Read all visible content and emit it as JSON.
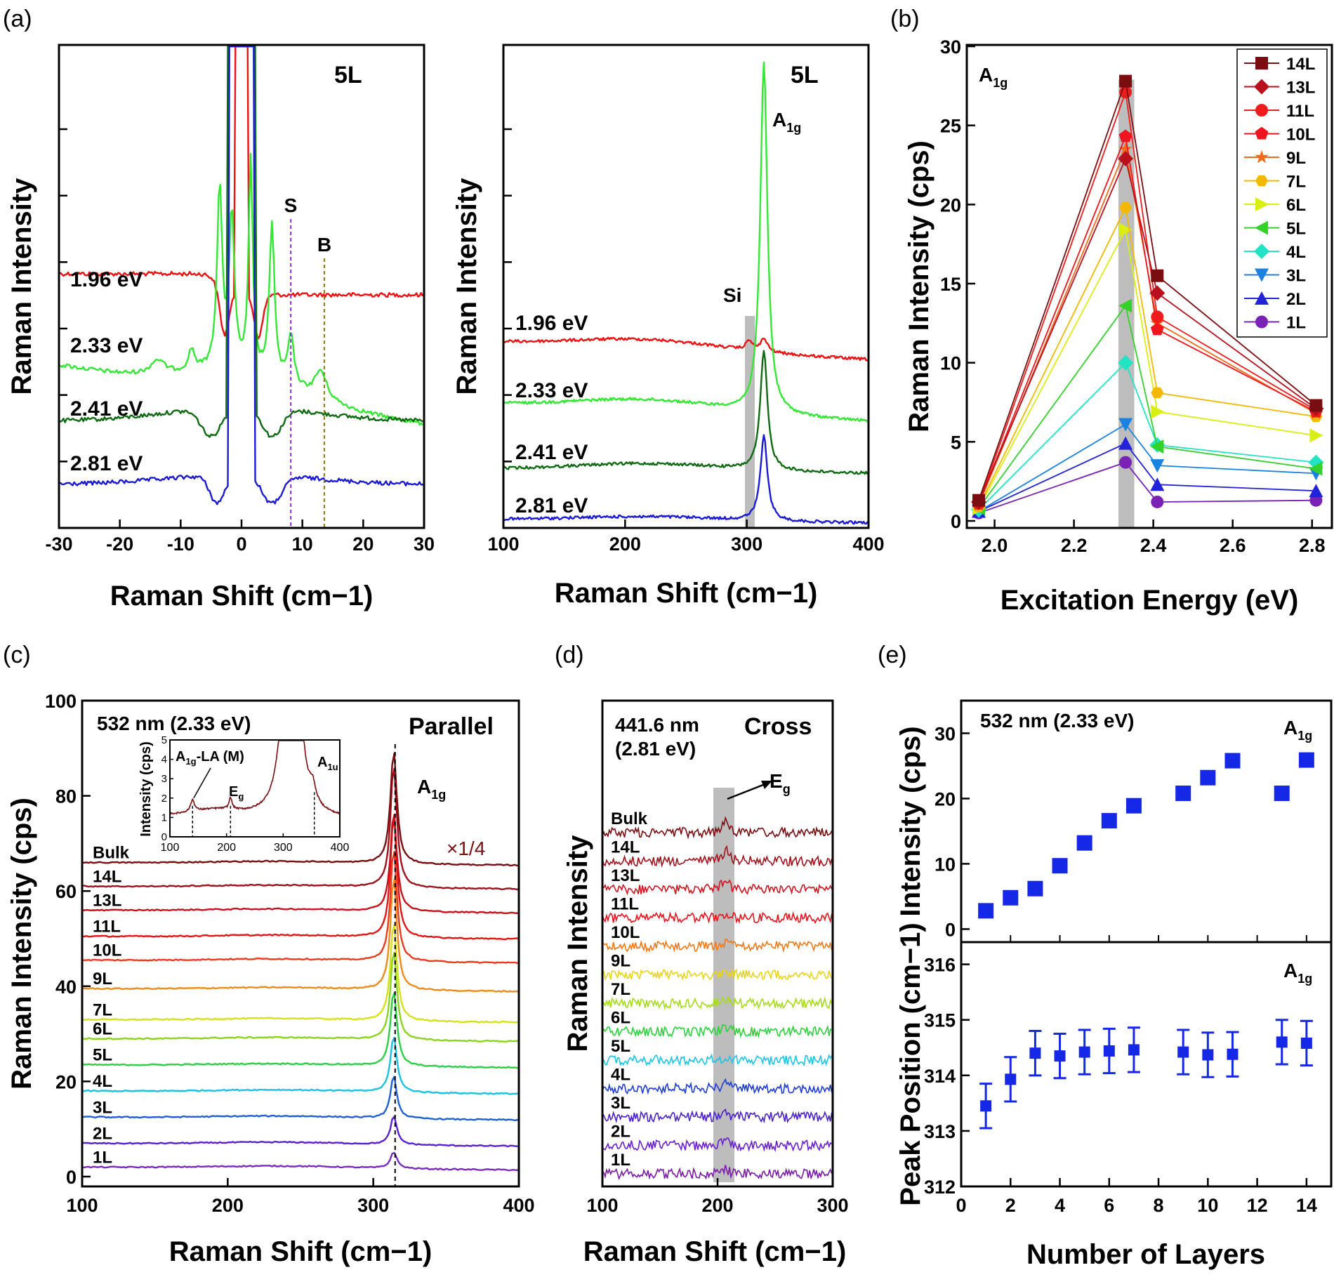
{
  "colors": {
    "red": "#ee1111",
    "green": "#33e833",
    "dark_green": "#0e6b12",
    "blue": "#1a1ad6",
    "violet": "#8a2be2",
    "olive": "#8a7a14",
    "maroon": "#7a0d10",
    "shade": "#bdbdbd"
  },
  "chart_data": [
    {
      "id": "a-left",
      "panel_label": "(a)",
      "type": "line",
      "title": "5L",
      "xlabel": "Raman Shift (cm−1)",
      "ylabel": "Raman Intensity",
      "xlim": [
        -30,
        30
      ],
      "xticks": [
        "-30",
        "-20",
        "-10",
        "0",
        "10",
        "20",
        "30"
      ],
      "annotations": [
        {
          "text": "S",
          "x": 8.1,
          "color": "violet"
        },
        {
          "text": "B",
          "x": 13.6,
          "color": "olive"
        }
      ],
      "series": [
        {
          "name": "1.96 eV",
          "color": "red"
        },
        {
          "name": "2.33 eV",
          "color": "green"
        },
        {
          "name": "2.41 eV",
          "color": "dark_green"
        },
        {
          "name": "2.81 eV",
          "color": "blue"
        }
      ]
    },
    {
      "id": "a-right",
      "type": "line",
      "title": "5L",
      "xlabel": "Raman Shift (cm−1)",
      "ylabel": "Raman Intensity",
      "xlim": [
        100,
        400
      ],
      "xticks": [
        "100",
        "200",
        "300",
        "400"
      ],
      "peak_label": {
        "main": "A",
        "sub": "1g",
        "x": 314
      },
      "si_label": {
        "text": "Si",
        "x": 302
      },
      "series": [
        {
          "name": "1.96 eV",
          "color": "red"
        },
        {
          "name": "2.33 eV",
          "color": "green"
        },
        {
          "name": "2.41 eV",
          "color": "dark_green"
        },
        {
          "name": "2.81 eV",
          "color": "blue"
        }
      ]
    },
    {
      "id": "b",
      "panel_label": "(b)",
      "type": "line",
      "title_main": "A",
      "title_sub": "1g",
      "xlabel": "Excitation Energy (eV)",
      "ylabel": "Raman Intensity (cps)",
      "xlim": [
        1.93,
        2.85
      ],
      "ylim": [
        0,
        30
      ],
      "xticks": [
        "2.0",
        "2.2",
        "2.4",
        "2.6",
        "2.8"
      ],
      "yticks": [
        "0",
        "5",
        "10",
        "15",
        "20",
        "25",
        "30"
      ],
      "x": [
        1.96,
        2.33,
        2.41,
        2.81
      ],
      "series": [
        {
          "name": "14L",
          "color": "#7a0d10",
          "marker": "square",
          "values": [
            1.3,
            27.8,
            15.5,
            7.3
          ]
        },
        {
          "name": "13L",
          "color": "#b8111d",
          "marker": "diamond",
          "values": [
            1.2,
            22.9,
            14.4,
            7.1
          ]
        },
        {
          "name": "11L",
          "color": "#ee1c1c",
          "marker": "sphere",
          "values": [
            1.1,
            27.1,
            12.9,
            7.0
          ]
        },
        {
          "name": "10L",
          "color": "#f0141e",
          "marker": "pentagon",
          "values": [
            1.1,
            24.3,
            12.1,
            6.9
          ]
        },
        {
          "name": "9L",
          "color": "#f26a1b",
          "marker": "star",
          "values": [
            1.0,
            23.5,
            12.5,
            6.8
          ]
        },
        {
          "name": "7L",
          "color": "#f5b800",
          "marker": "hexagon",
          "values": [
            0.9,
            19.8,
            8.1,
            6.6
          ]
        },
        {
          "name": "6L",
          "color": "#d9ee12",
          "marker": "triangle-right",
          "values": [
            0.8,
            18.4,
            6.9,
            5.4
          ]
        },
        {
          "name": "5L",
          "color": "#33d12a",
          "marker": "triangle-left",
          "values": [
            0.8,
            13.6,
            4.7,
            3.3
          ]
        },
        {
          "name": "4L",
          "color": "#22e3c3",
          "marker": "diamond",
          "values": [
            0.7,
            10.0,
            4.8,
            3.7
          ]
        },
        {
          "name": "3L",
          "color": "#1a82e0",
          "marker": "triangle-down",
          "values": [
            0.6,
            6.1,
            3.5,
            3.0
          ]
        },
        {
          "name": "2L",
          "color": "#2222d8",
          "marker": "triangle-up",
          "values": [
            0.6,
            4.9,
            2.3,
            1.9
          ]
        },
        {
          "name": "1L",
          "color": "#7a22b5",
          "marker": "circle",
          "values": [
            0.5,
            3.7,
            1.2,
            1.3
          ]
        }
      ]
    },
    {
      "id": "c",
      "panel_label": "(c)",
      "type": "line",
      "xlabel": "Raman Shift (cm−1)",
      "ylabel": "Raman Intensity (cps)",
      "xlim": [
        100,
        400
      ],
      "ylim": [
        0,
        100
      ],
      "xticks": [
        "100",
        "200",
        "300",
        "400"
      ],
      "yticks": [
        "0",
        "20",
        "40",
        "60",
        "80",
        "100"
      ],
      "title": "532 nm (2.33 eV)",
      "mode": "Parallel",
      "peak_label": {
        "main": "A",
        "sub": "1g"
      },
      "scale_note": "×1/4",
      "series": [
        {
          "name": "1L",
          "color": "#7b2bbf",
          "offset": 2,
          "amp": 3.5
        },
        {
          "name": "2L",
          "color": "#5a1fd2",
          "offset": 7,
          "amp": 6
        },
        {
          "name": "3L",
          "color": "#1c5fd9",
          "offset": 12.5,
          "amp": 9
        },
        {
          "name": "4L",
          "color": "#19c2e5",
          "offset": 18,
          "amp": 12
        },
        {
          "name": "5L",
          "color": "#2bcf44",
          "offset": 23.5,
          "amp": 16
        },
        {
          "name": "6L",
          "color": "#8ad41d",
          "offset": 29,
          "amp": 19
        },
        {
          "name": "7L",
          "color": "#d6e11a",
          "offset": 33,
          "amp": 21
        },
        {
          "name": "9L",
          "color": "#f08a18",
          "offset": 39.5,
          "amp": 24
        },
        {
          "name": "10L",
          "color": "#ee3a1a",
          "offset": 45.5,
          "amp": 24
        },
        {
          "name": "11L",
          "color": "#e31515",
          "offset": 50.5,
          "amp": 26
        },
        {
          "name": "13L",
          "color": "#c9111b",
          "offset": 56,
          "amp": 21
        },
        {
          "name": "14L",
          "color": "#a0101a",
          "offset": 61,
          "amp": 26
        },
        {
          "name": "Bulk",
          "color": "#7a0d10",
          "offset": 66,
          "amp": 24
        }
      ],
      "inset": {
        "xlim": [
          100,
          400
        ],
        "ylim": [
          0,
          5
        ],
        "xticks": [
          "100",
          "200",
          "300",
          "400"
        ],
        "yticks": [
          "0",
          "1",
          "2",
          "3",
          "4",
          "5"
        ],
        "ylabel": "Intensity (cps)",
        "labels": [
          {
            "main": "A",
            "sub": "1g",
            "tail": "-LA (M)",
            "x": 140
          },
          {
            "main": "E",
            "sub": "g",
            "x": 207
          },
          {
            "main": "A",
            "sub": "1u",
            "x": 355
          }
        ]
      }
    },
    {
      "id": "d",
      "panel_label": "(d)",
      "type": "line",
      "xlabel": "Raman Shift (cm−1)",
      "ylabel": "Raman Intensity",
      "xlim": [
        100,
        300
      ],
      "xticks": [
        "100",
        "200",
        "300"
      ],
      "title_line1": "441.6 nm",
      "title_line2": "(2.81 eV)",
      "mode": "Cross",
      "peak_label": {
        "main": "E",
        "sub": "g",
        "x": 207
      },
      "series": [
        {
          "name": "1L",
          "color": "#7a1aa8"
        },
        {
          "name": "2L",
          "color": "#6a1fd2"
        },
        {
          "name": "3L",
          "color": "#4a22c8"
        },
        {
          "name": "4L",
          "color": "#1e3dd8"
        },
        {
          "name": "5L",
          "color": "#19c6e6"
        },
        {
          "name": "6L",
          "color": "#2bd23c"
        },
        {
          "name": "7L",
          "color": "#a5dc18"
        },
        {
          "name": "9L",
          "color": "#e9d416"
        },
        {
          "name": "10L",
          "color": "#f07a18"
        },
        {
          "name": "11L",
          "color": "#e8141c"
        },
        {
          "name": "13L",
          "color": "#d01520"
        },
        {
          "name": "14L",
          "color": "#a3101a"
        },
        {
          "name": "Bulk",
          "color": "#7a0d10"
        }
      ]
    },
    {
      "id": "e-top",
      "panel_label": "(e)",
      "type": "scatter",
      "title": "532 nm (2.33 eV)",
      "peak_label": {
        "main": "A",
        "sub": "1g"
      },
      "ylabel": "Intensity (cps)",
      "xlim": [
        0,
        15
      ],
      "ylim": [
        -2,
        35
      ],
      "yticks": [
        "0",
        "10",
        "20",
        "30"
      ],
      "color": "#1428e6",
      "x": [
        1,
        2,
        3,
        4,
        5,
        6,
        7,
        9,
        10,
        11,
        13,
        14
      ],
      "values": [
        2.8,
        4.8,
        6.2,
        9.7,
        13.2,
        16.6,
        18.9,
        20.8,
        23.2,
        25.8,
        20.8,
        25.9
      ]
    },
    {
      "id": "e-bottom",
      "type": "scatter",
      "peak_label": {
        "main": "A",
        "sub": "1g"
      },
      "xlabel": "Number of Layers",
      "ylabel": "Peak Position (cm−1)",
      "xlim": [
        0,
        15
      ],
      "ylim": [
        312,
        316.4
      ],
      "xticks": [
        "0",
        "2",
        "4",
        "6",
        "8",
        "10",
        "12",
        "14"
      ],
      "yticks": [
        "312",
        "313",
        "314",
        "315",
        "316"
      ],
      "color": "#1428e6",
      "x": [
        1,
        2,
        3,
        4,
        5,
        6,
        7,
        9,
        10,
        11,
        13,
        14
      ],
      "values": [
        313.45,
        313.93,
        314.4,
        314.35,
        314.42,
        314.44,
        314.46,
        314.42,
        314.37,
        314.38,
        314.6,
        314.58
      ],
      "errors": [
        0.4,
        0.4,
        0.4,
        0.4,
        0.4,
        0.4,
        0.4,
        0.4,
        0.4,
        0.4,
        0.4,
        0.4
      ]
    }
  ]
}
